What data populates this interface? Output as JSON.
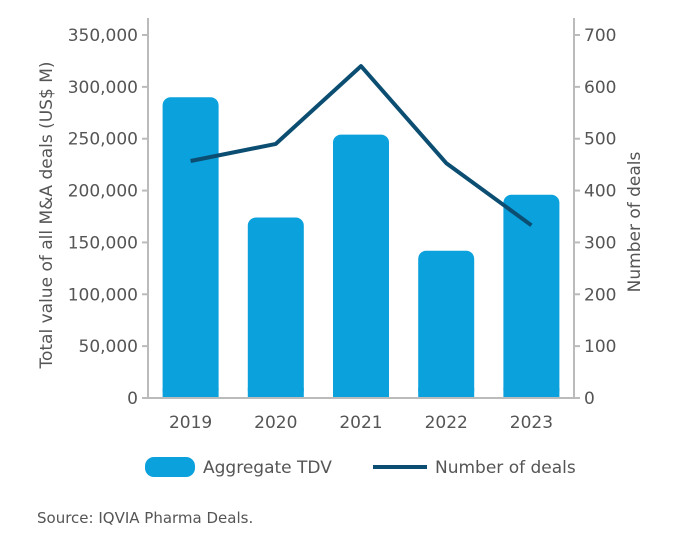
{
  "chart_data": {
    "type": "bar+line",
    "categories": [
      "2019",
      "2020",
      "2021",
      "2022",
      "2023"
    ],
    "series": [
      {
        "name": "Aggregate TDV",
        "type": "bar",
        "axis": "left",
        "values": [
          290000,
          174000,
          254000,
          142000,
          196000
        ],
        "color": "#0aa1dd"
      },
      {
        "name": "Number of deals",
        "type": "line",
        "axis": "right",
        "values": [
          457,
          490,
          640,
          453,
          333
        ],
        "color": "#0b4e72"
      }
    ],
    "ylabel": "Total value of all M&A deals (US$ M)",
    "y2label": "Number of deals",
    "ylim": [
      0,
      350000
    ],
    "y2lim": [
      0,
      700
    ],
    "yticks": [
      "0",
      "50,000",
      "100,000",
      "150,000",
      "200,000",
      "250,000",
      "300,000",
      "350,000"
    ],
    "y2ticks": [
      "0",
      "100",
      "200",
      "300",
      "400",
      "500",
      "600",
      "700"
    ],
    "legend_position": "bottom",
    "grid": false
  },
  "source": "Source: IQVIA Pharma Deals."
}
